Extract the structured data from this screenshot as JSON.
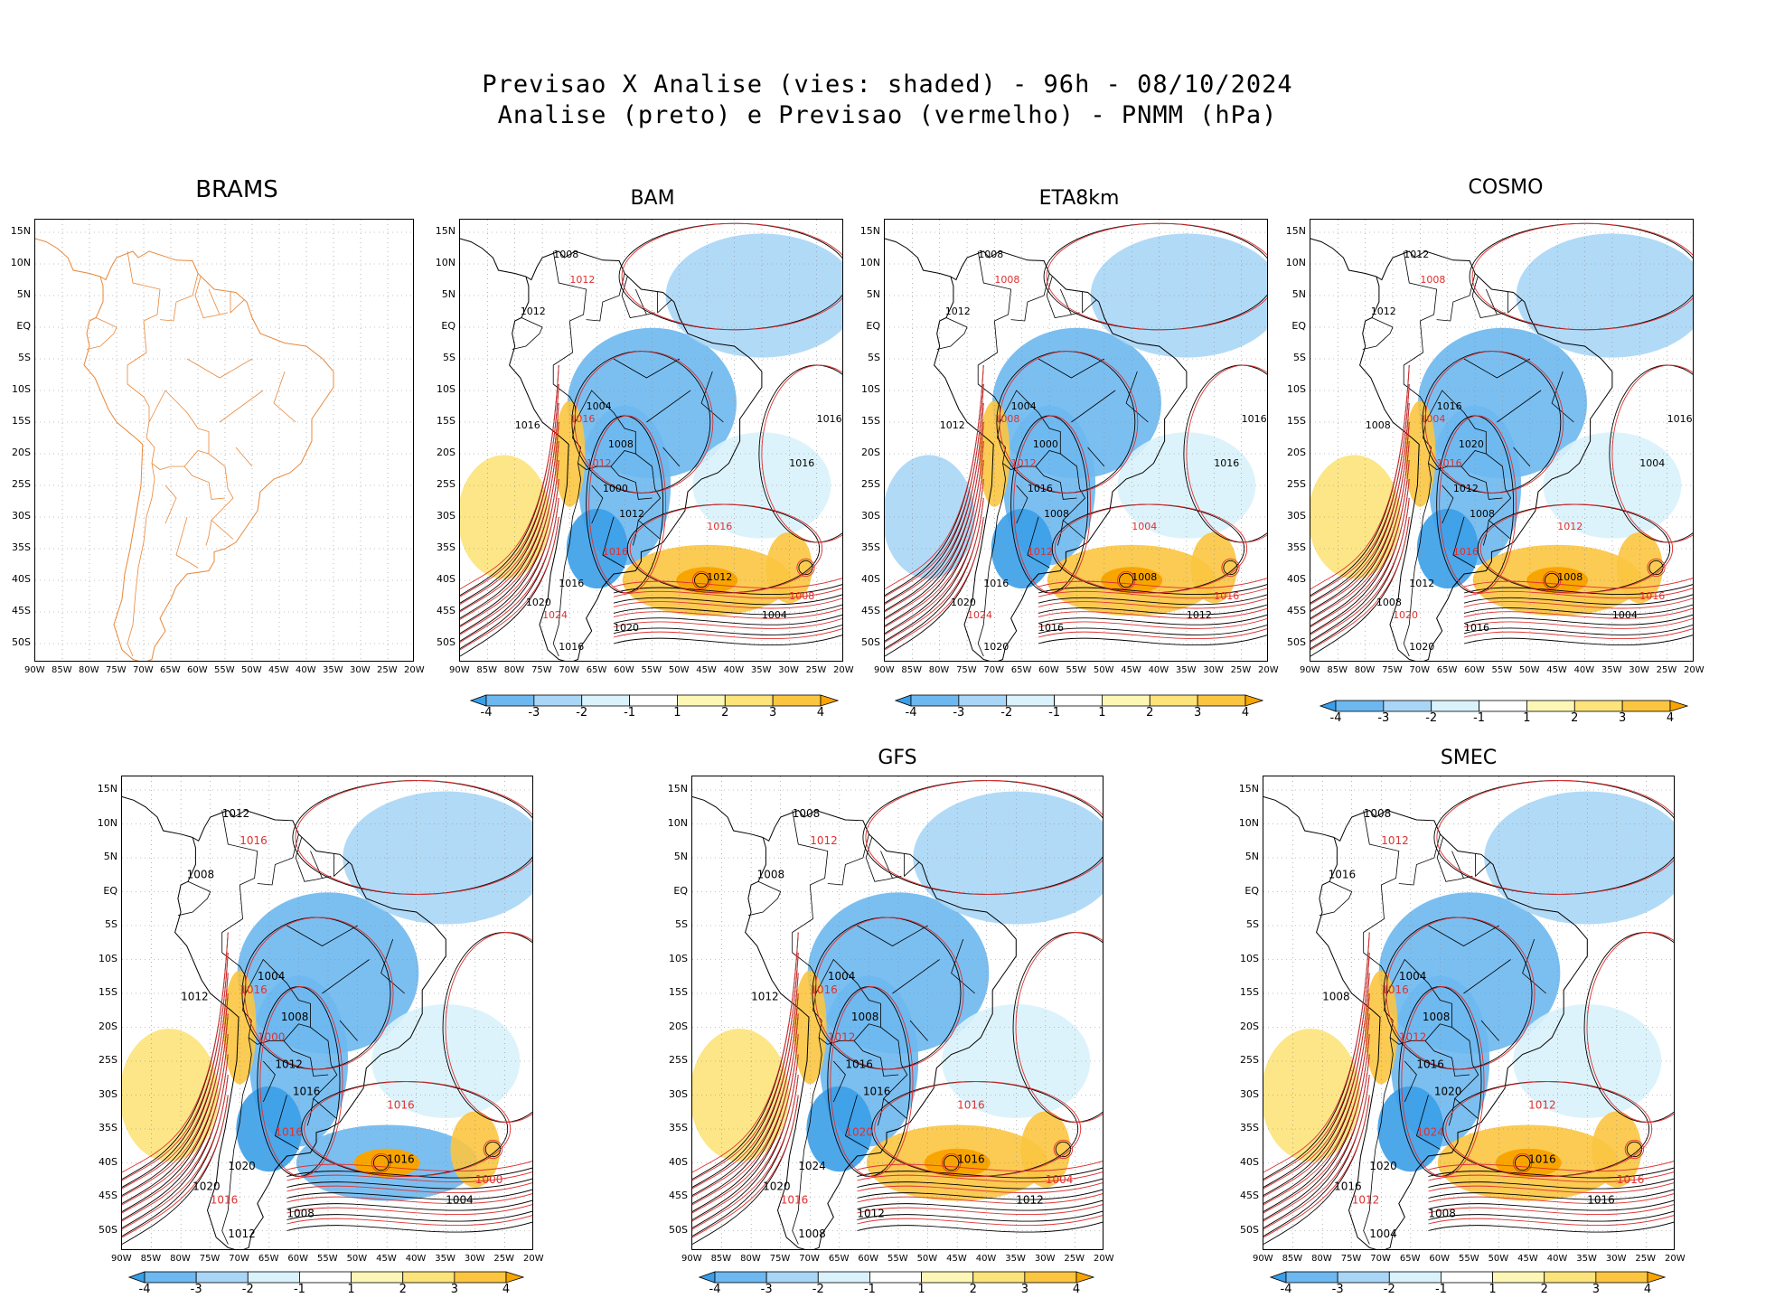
{
  "title_line1": "Previsao X Analise (vies: shaded) - 96h - 08/10/2024",
  "title_line2": "Analise (preto) e Previsao (vermelho) - PNMM (hPa)",
  "lat_labels": [
    "15N",
    "10N",
    "5N",
    "EQ",
    "5S",
    "10S",
    "15S",
    "20S",
    "25S",
    "30S",
    "35S",
    "40S",
    "45S",
    "50S"
  ],
  "lon_labels": [
    "90W",
    "85W",
    "80W",
    "75W",
    "70W",
    "65W",
    "60W",
    "55W",
    "50W",
    "45W",
    "40W",
    "35W",
    "30W",
    "25W",
    "20W"
  ],
  "colorbar": {
    "labels": [
      "-4",
      "-3",
      "-2",
      "-1",
      "1",
      "2",
      "3",
      "4"
    ],
    "colors": [
      "#3a9ee8",
      "#6db8f0",
      "#a9d6f6",
      "#d9f2fb",
      "#ffffff",
      "#fdf7b6",
      "#fce37a",
      "#fbc540",
      "#f9a500"
    ]
  },
  "panels": [
    {
      "id": "brams",
      "title": "BRAMS",
      "has_bias": false
    },
    {
      "id": "bam",
      "title": "BAM",
      "has_bias": true,
      "labels": [
        "1008",
        "1012",
        "1012",
        "1016",
        "1016",
        "1004",
        "1008",
        "1012",
        "1000",
        "1012",
        "1016",
        "1016",
        "1020",
        "1024",
        "1020",
        "1016",
        "1008",
        "1004",
        "1012",
        "1016",
        "1016",
        "1016"
      ]
    },
    {
      "id": "eta",
      "title": "ETA8km",
      "has_bias": true,
      "labels": [
        "1008",
        "1008",
        "1012",
        "1012",
        "1008",
        "1004",
        "1000",
        "1012",
        "1016",
        "1008",
        "1012",
        "1016",
        "1020",
        "1024",
        "1016",
        "1020",
        "1016",
        "1012",
        "1008",
        "1004",
        "1016",
        "1016"
      ]
    },
    {
      "id": "cosmo",
      "title": "COSMO",
      "has_bias": true,
      "labels": [
        "1012",
        "1008",
        "1012",
        "1008",
        "1004",
        "1016",
        "1020",
        "1016",
        "1012",
        "1008",
        "1016",
        "1012",
        "1008",
        "1020",
        "1016",
        "1020",
        "1016",
        "1004",
        "1008",
        "1012",
        "1016",
        "1004"
      ]
    },
    {
      "id": "bot1",
      "title": "",
      "has_bias": true,
      "labels": [
        "1012",
        "1016",
        "1008",
        "1012",
        "1016",
        "1004",
        "1008",
        "1000",
        "1012",
        "1016",
        "1016",
        "1020",
        "1020",
        "1016",
        "1008",
        "1012",
        "1000",
        "1004",
        "1016",
        "1016"
      ]
    },
    {
      "id": "gfs",
      "title": "GFS",
      "has_bias": true,
      "labels": [
        "1008",
        "1012",
        "1008",
        "1012",
        "1016",
        "1004",
        "1008",
        "1012",
        "1016",
        "1016",
        "1020",
        "1024",
        "1020",
        "1016",
        "1012",
        "1008",
        "1004",
        "1012",
        "1016",
        "1016"
      ]
    },
    {
      "id": "smec",
      "title": "SMEC",
      "has_bias": true,
      "labels": [
        "1008",
        "1012",
        "1016",
        "1008",
        "1016",
        "1004",
        "1008",
        "1012",
        "1016",
        "1020",
        "1024",
        "1020",
        "1016",
        "1012",
        "1008",
        "1004",
        "1016",
        "1016",
        "1016",
        "1012"
      ]
    }
  ]
}
